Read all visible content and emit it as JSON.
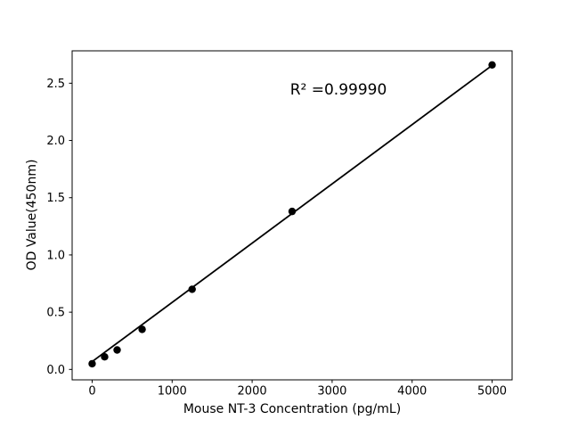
{
  "figure": {
    "background": "#ffffff",
    "text_color": "#000000"
  },
  "chart_data": {
    "type": "scatter",
    "title": "",
    "xlabel": "Mouse NT-3 Concentration (pg/mL)",
    "ylabel": "OD Value(450nm)",
    "annotation": "R² =0.99990",
    "x": [
      0,
      156.25,
      312.5,
      625,
      1250,
      2500,
      5000
    ],
    "y": [
      0.05,
      0.11,
      0.17,
      0.35,
      0.7,
      1.38,
      2.66
    ],
    "fit_line": {
      "x": [
        0,
        5000
      ],
      "y": [
        0.068,
        2.656
      ]
    },
    "x_ticks": [
      0,
      1000,
      2000,
      3000,
      4000,
      5000
    ],
    "x_tick_labels": [
      "0",
      "1000",
      "2000",
      "3000",
      "4000",
      "5000"
    ],
    "y_ticks": [
      0.0,
      0.5,
      1.0,
      1.5,
      2.0,
      2.5
    ],
    "y_tick_labels": [
      "0.0",
      "0.5",
      "1.0",
      "1.5",
      "2.0",
      "2.5"
    ],
    "xlim": [
      -250,
      5250
    ],
    "ylim": [
      -0.091,
      2.783
    ],
    "grid": false,
    "legend": "none",
    "marker_color": "#000000",
    "line_color": "#000000",
    "spine_color": "#000000"
  }
}
